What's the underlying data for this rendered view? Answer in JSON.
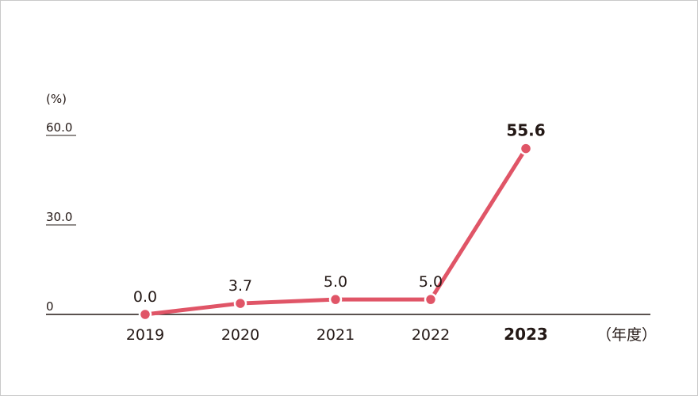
{
  "chart_data": {
    "type": "line",
    "categories": [
      "2019",
      "2020",
      "2021",
      "2022",
      "2023"
    ],
    "values": [
      0.0,
      3.7,
      5.0,
      5.0,
      55.6
    ],
    "value_labels": [
      "0.0",
      "3.7",
      "5.0",
      "5.0",
      "55.6"
    ],
    "y_unit_label": "(%)",
    "x_unit_label": "（年度）",
    "y_ticks": [
      {
        "value": 0,
        "label": "0"
      },
      {
        "value": 30,
        "label": "30.0"
      },
      {
        "value": 60,
        "label": "60.0"
      }
    ],
    "ylim": [
      0,
      60
    ],
    "highlight_index": 4,
    "grid": false,
    "line_color": "#e05567",
    "axis_color": "#231815",
    "text_color": "#231815"
  }
}
